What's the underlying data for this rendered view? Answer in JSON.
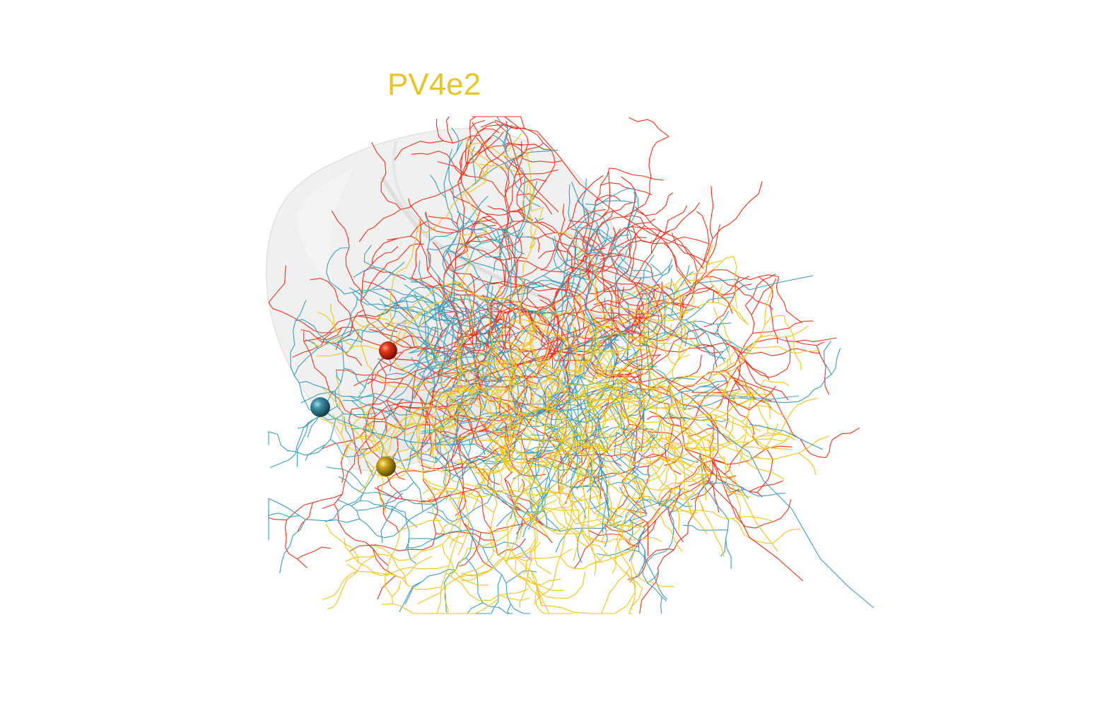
{
  "view": {
    "background": "#ffffff"
  },
  "label": {
    "text": "PV4e2",
    "color": "#E8C52A"
  },
  "neuropil": {
    "name": "brain-region-mesh",
    "fill": "#e6e6e6",
    "opacity": 0.45
  },
  "neurons": [
    {
      "name": "neuron-red",
      "color": "#E8331E",
      "soma_color": "#D42A12"
    },
    {
      "name": "neuron-blue",
      "color": "#3D9DB8",
      "soma_color": "#2F7E96"
    },
    {
      "name": "neuron-yellow",
      "color": "#F0C419",
      "soma_color": "#C9A21A"
    }
  ]
}
